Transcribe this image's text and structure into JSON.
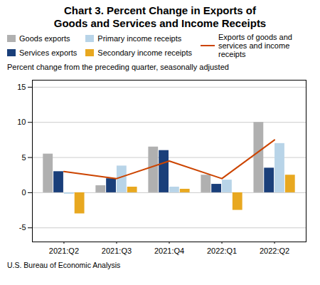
{
  "chart_data": {
    "type": "bar",
    "title": "Chart 3. Percent Change in Exports of\nGoods and Services and Income Receipts",
    "subtitle": "Percent change from the preceding quarter, seasonally adjusted",
    "caption": "U.S. Bureau of Economic Analysis",
    "categories": [
      "2021:Q2",
      "2021:Q3",
      "2021:Q4",
      "2022:Q1",
      "2022:Q2"
    ],
    "series": [
      {
        "name": "Goods exports",
        "color": "#b0b0b0",
        "values": [
          5.5,
          1.0,
          6.5,
          2.5,
          10.0
        ]
      },
      {
        "name": "Services exports",
        "color": "#1a3f7a",
        "values": [
          3.0,
          2.0,
          6.0,
          1.2,
          3.5
        ]
      },
      {
        "name": "Primary income receipts",
        "color": "#b8d4e8",
        "values": [
          -0.2,
          3.8,
          0.8,
          1.8,
          7.0
        ]
      },
      {
        "name": "Secondary income receipts",
        "color": "#e8a820",
        "values": [
          -3.0,
          0.8,
          0.5,
          -2.5,
          2.5
        ]
      },
      {
        "name": "Exports of goods and services and income receipts",
        "type": "line",
        "color": "#cc4400",
        "values": [
          3.0,
          2.0,
          4.5,
          2.0,
          7.5
        ]
      }
    ],
    "ylim": [
      -7,
      16
    ],
    "yticks": [
      -5,
      0,
      5,
      10,
      15
    ],
    "grid": true
  }
}
